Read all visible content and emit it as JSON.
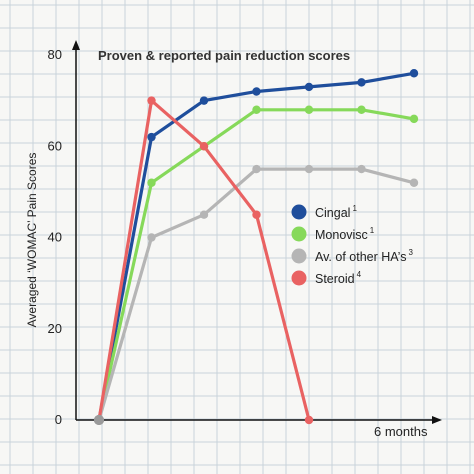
{
  "chart_data": {
    "type": "line",
    "title": "Proven & reported pain reduction scores",
    "ylabel": "Averaged ‘WOMAC’ Pain Scores",
    "xlabel": "6 months",
    "ylim": [
      0,
      80
    ],
    "yticks": [
      0,
      20,
      40,
      60,
      80
    ],
    "xlim": [
      0,
      6
    ],
    "grid": true,
    "legend_position": "right",
    "series": [
      {
        "name": "Cingal",
        "sup": "1",
        "color": "#1f4e9c",
        "x": [
          0,
          1,
          2,
          3,
          4,
          5,
          6
        ],
        "values": [
          0,
          62,
          70,
          72,
          73,
          74,
          76
        ]
      },
      {
        "name": "Monovisc",
        "sup": "1",
        "color": "#86d95a",
        "x": [
          0,
          1,
          2,
          3,
          4,
          5,
          6
        ],
        "values": [
          0,
          52,
          60,
          68,
          68,
          68,
          66
        ]
      },
      {
        "name": "Av. of other HA’s",
        "sup": "3",
        "color": "#b5b5b5",
        "x": [
          0,
          1,
          2,
          3,
          4,
          5,
          6
        ],
        "values": [
          0,
          40,
          45,
          55,
          55,
          55,
          52
        ]
      },
      {
        "name": "Steroid",
        "sup": "4",
        "color": "#e96262",
        "x": [
          0,
          1,
          2,
          3,
          4
        ],
        "values": [
          0,
          70,
          60,
          45,
          0
        ]
      }
    ]
  }
}
